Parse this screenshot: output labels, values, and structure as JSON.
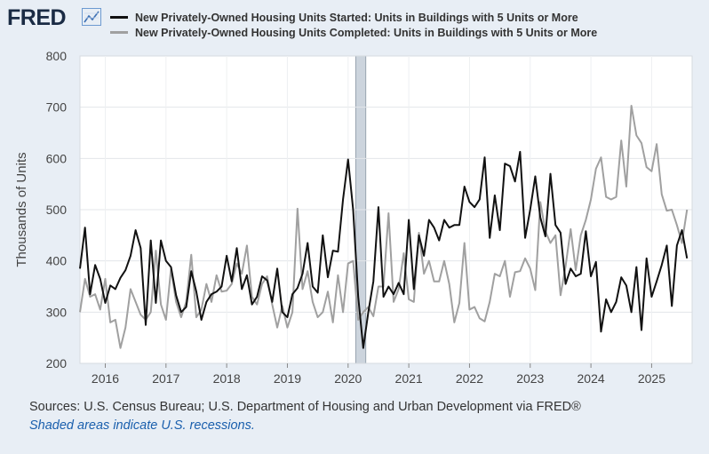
{
  "brand": {
    "name": "FRED"
  },
  "legend": [
    {
      "label": "New Privately-Owned Housing Units Started: Units in Buildings with 5 Units or More",
      "color": "#111111"
    },
    {
      "label": "New Privately-Owned Housing Units Completed: Units in Buildings with 5 Units or More",
      "color": "#a0a0a0"
    }
  ],
  "footer": {
    "sources": "Sources: U.S. Census Bureau; U.S. Department of Housing and Urban Development via FRED®",
    "note": "Shaded areas indicate U.S. recessions."
  },
  "chart_data": {
    "type": "line",
    "ylabel": "Thousands of Units",
    "ylim": [
      200,
      800
    ],
    "yticks": [
      200,
      300,
      400,
      500,
      600,
      700,
      800
    ],
    "xlim": [
      2015.583,
      2025.667
    ],
    "xticks": [
      "2016",
      "2017",
      "2018",
      "2019",
      "2020",
      "2021",
      "2022",
      "2023",
      "2024",
      "2025"
    ],
    "recession": [
      2020.125,
      2020.292
    ],
    "grid": true,
    "start": 2015.583,
    "step_months": 1,
    "series": [
      {
        "name": "Started",
        "color": "#111111",
        "values": [
          385,
          465,
          335,
          392,
          365,
          318,
          352,
          345,
          367,
          382,
          410,
          460,
          425,
          275,
          440,
          318,
          440,
          400,
          388,
          333,
          300,
          310,
          380,
          340,
          285,
          320,
          335,
          340,
          350,
          410,
          360,
          425,
          345,
          372,
          315,
          330,
          370,
          362,
          320,
          385,
          300,
          290,
          335,
          347,
          375,
          435,
          350,
          338,
          450,
          368,
          420,
          418,
          520,
          598,
          500,
          330,
          230,
          300,
          360,
          505,
          330,
          350,
          335,
          357,
          335,
          480,
          345,
          450,
          410,
          480,
          465,
          440,
          480,
          465,
          470,
          470,
          545,
          515,
          505,
          520,
          602,
          445,
          528,
          460,
          590,
          585,
          555,
          613,
          445,
          500,
          565,
          485,
          448,
          570,
          470,
          455,
          355,
          385,
          370,
          375,
          458,
          370,
          398,
          262,
          325,
          300,
          320,
          368,
          352,
          300,
          388,
          265,
          405,
          330,
          360,
          392,
          430,
          312,
          430,
          460,
          405
        ]
      },
      {
        "name": "Completed",
        "color": "#a0a0a0",
        "values": [
          300,
          365,
          330,
          335,
          305,
          365,
          280,
          285,
          230,
          270,
          345,
          320,
          295,
          285,
          300,
          420,
          315,
          285,
          385,
          320,
          290,
          320,
          412,
          290,
          305,
          355,
          320,
          372,
          340,
          342,
          355,
          395,
          375,
          430,
          330,
          315,
          355,
          370,
          315,
          270,
          312,
          270,
          300,
          502,
          345,
          380,
          320,
          290,
          300,
          340,
          280,
          372,
          300,
          395,
          400,
          285,
          300,
          310,
          292,
          350,
          350,
          493,
          320,
          345,
          415,
          325,
          320,
          455,
          375,
          400,
          360,
          360,
          400,
          355,
          280,
          318,
          435,
          305,
          310,
          288,
          282,
          320,
          375,
          370,
          400,
          330,
          378,
          380,
          405,
          385,
          343,
          515,
          458,
          435,
          450,
          333,
          390,
          462,
          382,
          450,
          480,
          520,
          580,
          602,
          525,
          520,
          525,
          635,
          545,
          703,
          645,
          630,
          583,
          575,
          628,
          530,
          498,
          500,
          470,
          435,
          500
        ]
      }
    ]
  }
}
